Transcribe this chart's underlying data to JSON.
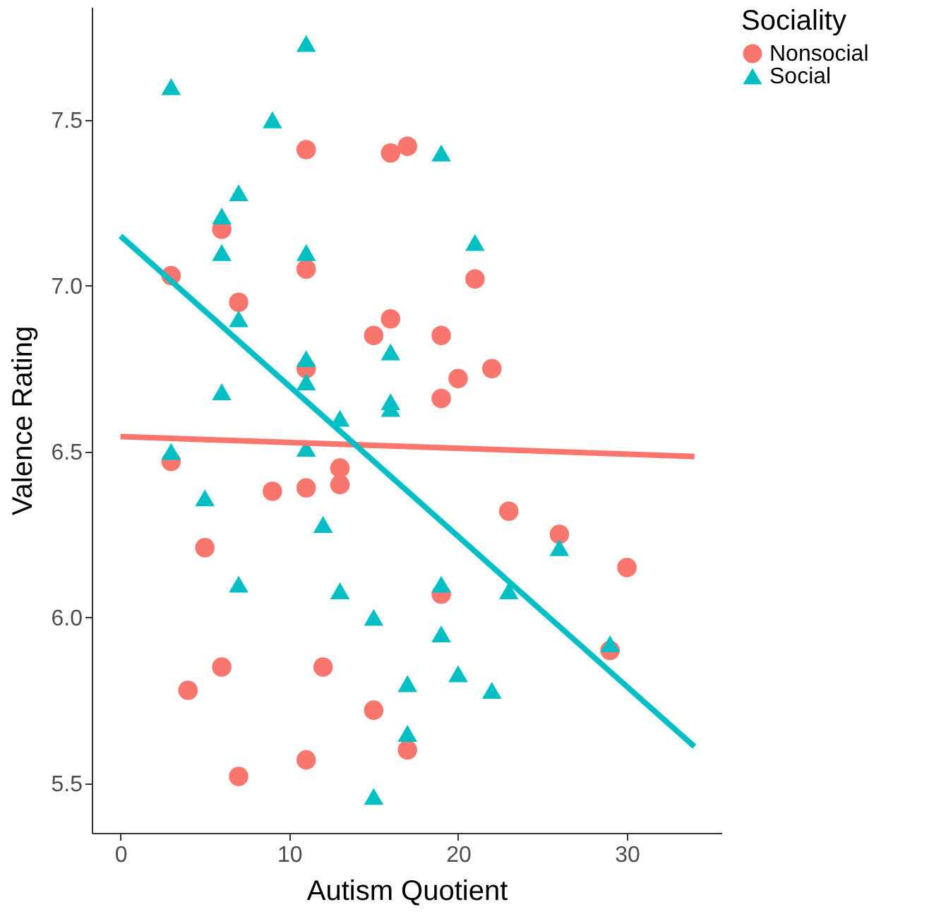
{
  "chart_data": {
    "type": "scatter",
    "xlabel": "Autism Quotient",
    "ylabel": "Valence Rating",
    "legend_title": "Sociality",
    "legend": "right",
    "grid": false,
    "xlim": [
      -1.7,
      35.6
    ],
    "xticks": [
      0,
      10,
      20,
      30
    ],
    "ylim": [
      5.35,
      7.84
    ],
    "yticks": [
      5.5,
      {
        "value": 6,
        "label": "6.0"
      },
      6.5,
      {
        "value": 7,
        "label": "7.0"
      },
      7.5
    ],
    "series": [
      {
        "name": "Nonsocial",
        "marker": "circle",
        "color": "#f8766d",
        "x": [
          3,
          3,
          6,
          7,
          11,
          11,
          11,
          16,
          17,
          16,
          15,
          19,
          19,
          20,
          21,
          22,
          9,
          11,
          13,
          13,
          5,
          23,
          26,
          30,
          19,
          29,
          4,
          6,
          12,
          15,
          17,
          11,
          7
        ],
        "values": [
          7.03,
          6.47,
          7.17,
          6.95,
          7.41,
          7.05,
          6.75,
          7.4,
          7.42,
          6.9,
          6.85,
          6.85,
          6.66,
          6.72,
          7.02,
          6.75,
          6.38,
          6.39,
          6.45,
          6.4,
          6.21,
          6.32,
          6.25,
          6.15,
          6.07,
          5.9,
          5.78,
          5.85,
          5.85,
          5.72,
          5.6,
          5.57,
          5.52
        ]
      },
      {
        "name": "Social",
        "marker": "triangle",
        "color": "#00bfc4",
        "x": [
          3,
          11,
          9,
          19,
          7,
          6,
          6,
          11,
          21,
          7,
          11,
          11,
          16,
          6,
          16,
          16,
          13,
          3,
          11,
          5,
          12,
          7,
          13,
          15,
          19,
          19,
          23,
          26,
          29,
          17,
          20,
          22,
          17,
          15
        ],
        "values": [
          7.6,
          7.73,
          7.5,
          7.4,
          7.28,
          7.21,
          7.1,
          7.1,
          7.13,
          6.9,
          6.78,
          6.71,
          6.8,
          6.68,
          6.65,
          6.63,
          6.6,
          6.5,
          6.51,
          6.36,
          6.28,
          6.1,
          6.08,
          6.0,
          6.1,
          5.95,
          6.08,
          6.21,
          5.92,
          5.8,
          5.83,
          5.78,
          5.65,
          5.46
        ]
      },
      {
        "type": "line",
        "color": "#f8766d",
        "x": [
          0,
          34
        ],
        "values": [
          6.545,
          6.485
        ]
      },
      {
        "type": "line",
        "color": "#00bfc4",
        "x": [
          0,
          34
        ],
        "values": [
          7.15,
          5.61
        ]
      }
    ]
  }
}
